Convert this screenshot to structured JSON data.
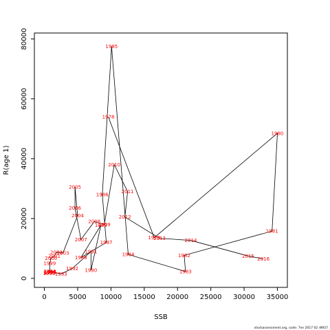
{
  "chart_data": {
    "type": "scatter",
    "title": "",
    "xlabel": "SSB",
    "ylabel": "R(age 1)",
    "xlim": [
      -1500,
      36500
    ],
    "ylim": [
      -3000,
      82000
    ],
    "xticks": [
      0,
      5000,
      10000,
      15000,
      20000,
      25000,
      30000,
      35000
    ],
    "yticks": [
      0,
      20000,
      40000,
      60000,
      80000
    ],
    "grid": false,
    "legend": "none",
    "line_color": "#000000",
    "label_color": "#ff0000",
    "points": [
      {
        "year": "1978",
        "ssb": 9600,
        "rec": 54000
      },
      {
        "year": "1979",
        "ssb": 16500,
        "rec": 13600
      },
      {
        "year": "1980",
        "ssb": 35000,
        "rec": 48500
      },
      {
        "year": "1981",
        "ssb": 34200,
        "rec": 15800
      },
      {
        "year": "1982",
        "ssb": 21000,
        "rec": 7700
      },
      {
        "year": "1983",
        "ssb": 21200,
        "rec": 2300
      },
      {
        "year": "1984",
        "ssb": 12600,
        "rec": 8000
      },
      {
        "year": "1985",
        "ssb": 10100,
        "rec": 77500
      },
      {
        "year": "1986",
        "ssb": 8700,
        "rec": 28000
      },
      {
        "year": "1987",
        "ssb": 9300,
        "rec": 12000
      },
      {
        "year": "1988",
        "ssb": 5500,
        "rec": 7000
      },
      {
        "year": "1989",
        "ssb": 8500,
        "rec": 17800
      },
      {
        "year": "1990",
        "ssb": 7000,
        "rec": 2700
      },
      {
        "year": "1991",
        "ssb": 7000,
        "rec": 9000
      },
      {
        "year": "1992",
        "ssb": 4200,
        "rec": 3300
      },
      {
        "year": "1993",
        "ssb": 2500,
        "rec": 1500
      },
      {
        "year": "1994",
        "ssb": 800,
        "rec": 2400
      },
      {
        "year": "1995",
        "ssb": 700,
        "rec": 1700
      },
      {
        "year": "1996",
        "ssb": 900,
        "rec": 2000
      },
      {
        "year": "1997",
        "ssb": 900,
        "rec": 2200
      },
      {
        "year": "1998",
        "ssb": 800,
        "rec": 1900
      },
      {
        "year": "1999",
        "ssb": 800,
        "rec": 5000
      },
      {
        "year": "2000",
        "ssb": 1000,
        "rec": 6800
      },
      {
        "year": "2001",
        "ssb": 1500,
        "rec": 7500
      },
      {
        "year": "2002",
        "ssb": 1800,
        "rec": 8700
      },
      {
        "year": "2003",
        "ssb": 2800,
        "rec": 8500
      },
      {
        "year": "2004",
        "ssb": 5000,
        "rec": 21000
      },
      {
        "year": "2005",
        "ssb": 4600,
        "rec": 30500
      },
      {
        "year": "2006",
        "ssb": 4600,
        "rec": 23500
      },
      {
        "year": "2007",
        "ssb": 5500,
        "rec": 13000
      },
      {
        "year": "2008",
        "ssb": 7500,
        "rec": 19000
      },
      {
        "year": "2009",
        "ssb": 9000,
        "rec": 18000
      },
      {
        "year": "2010",
        "ssb": 10500,
        "rec": 38000
      },
      {
        "year": "2011",
        "ssb": 12500,
        "rec": 29000
      },
      {
        "year": "2012",
        "ssb": 12100,
        "rec": 20500
      },
      {
        "year": "2013",
        "ssb": 17300,
        "rec": 13400
      },
      {
        "year": "2014",
        "ssb": 22000,
        "rec": 12700
      },
      {
        "year": "2015",
        "ssb": 30600,
        "rec": 7500
      },
      {
        "year": "2016",
        "ssb": 32900,
        "rec": 6500
      }
    ]
  },
  "footer": {
    "text": "stockassessment.org, code: 7en 2017 02 r8927"
  }
}
